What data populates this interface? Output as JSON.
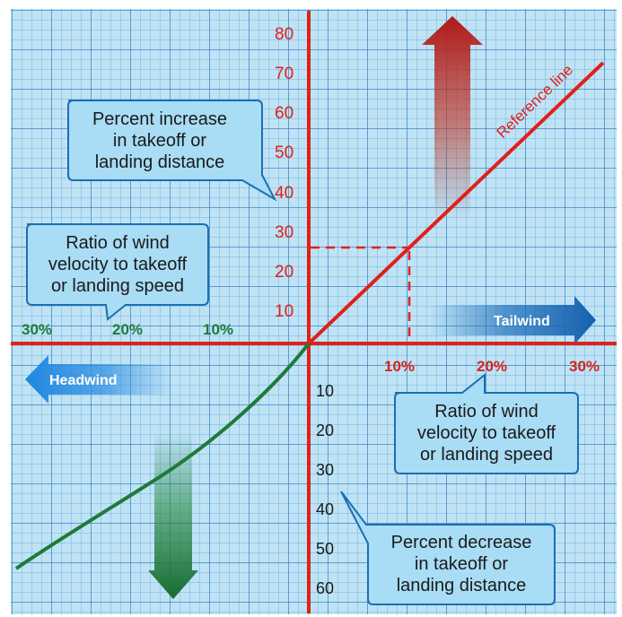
{
  "y_axis_positive": [
    "10",
    "20",
    "30",
    "40",
    "50",
    "60",
    "70",
    "80"
  ],
  "y_axis_negative": [
    "10",
    "20",
    "30",
    "40",
    "50",
    "60"
  ],
  "x_axis_positive": [
    "10%",
    "20%",
    "30%"
  ],
  "x_axis_negative": [
    "10%",
    "20%",
    "30%"
  ],
  "reference_line_label": "Reference line",
  "tailwind_label": "Tailwind",
  "headwind_label": "Headwind",
  "callout_increase": [
    "Percent increase",
    "in takeoff or",
    "landing distance"
  ],
  "callout_ratio_left": [
    "Ratio of wind",
    "velocity to takeoff",
    "or landing speed"
  ],
  "callout_ratio_right": [
    "Ratio of wind",
    "velocity to takeoff",
    "or landing speed"
  ],
  "callout_decrease": [
    "Percent decrease",
    "in takeoff or",
    "landing distance"
  ],
  "colors": {
    "axis_red": "#e0201b",
    "headwind_curve_green": "#1f7a3a",
    "callout_fill": "#a9dcf5",
    "callout_stroke": "#1b6fb3",
    "grid_background": "#bfe3f4"
  }
}
